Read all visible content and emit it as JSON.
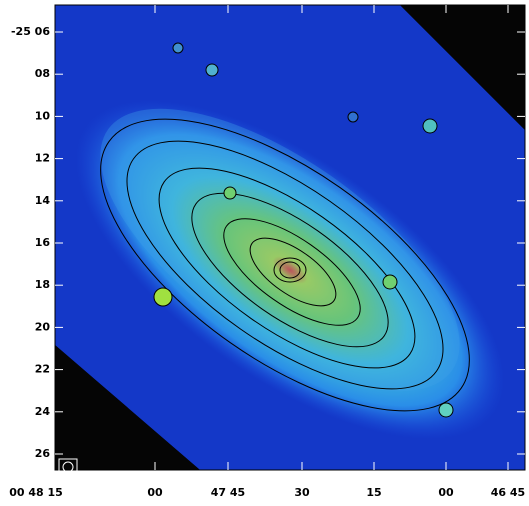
{
  "axes": {
    "y_labels": [
      "-25 06",
      "08",
      "10",
      "12",
      "14",
      "16",
      "18",
      "20",
      "22",
      "24",
      "26"
    ],
    "x_labels": [
      "00 48 15",
      "00",
      "47 45",
      "30",
      "15",
      "00",
      "46 45"
    ]
  }
}
